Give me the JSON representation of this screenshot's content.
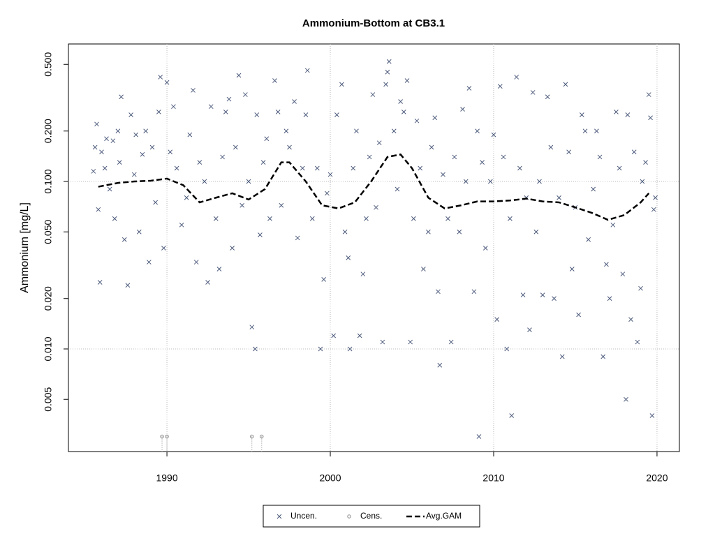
{
  "chart_data": {
    "type": "scatter",
    "title": "Ammonium-Bottom at CB3.1",
    "y_label": "Ammonium [mg/L]",
    "log_y": true,
    "grid": true,
    "legend": "bottom",
    "xlim": [
      1983.97,
      2021.37
    ],
    "ylim": [
      0.00244,
      0.662
    ],
    "xticks": [
      1990,
      2000,
      2010,
      2020
    ],
    "yticks": [
      {
        "value": 0.005,
        "label": "0.005"
      },
      {
        "value": 0.01,
        "label": "0.010"
      },
      {
        "value": 0.02,
        "label": "0.020"
      },
      {
        "value": 0.05,
        "label": "0.050"
      },
      {
        "value": 0.1,
        "label": "0.100"
      },
      {
        "value": 0.2,
        "label": "0.200"
      },
      {
        "value": 0.5,
        "label": "0.500"
      }
    ],
    "series": [
      {
        "name": "Uncen.",
        "type": "scatter",
        "marker": "x",
        "color": "#4d5b7c",
        "x": [
          1985.5,
          1985.6,
          1985.7,
          1985.8,
          1985.9,
          1986.0,
          1986.2,
          1986.3,
          1986.5,
          1986.7,
          1986.8,
          1987.0,
          1987.1,
          1987.2,
          1987.4,
          1987.6,
          1987.8,
          1988.0,
          1988.1,
          1988.3,
          1988.5,
          1988.7,
          1988.9,
          1989.1,
          1989.3,
          1989.5,
          1989.6,
          1989.8,
          1990.0,
          1990.2,
          1990.4,
          1990.6,
          1990.9,
          1991.2,
          1991.4,
          1991.6,
          1991.8,
          1992.0,
          1992.3,
          1992.5,
          1992.7,
          1993.0,
          1993.2,
          1993.4,
          1993.6,
          1993.8,
          1994.0,
          1994.2,
          1994.4,
          1994.6,
          1994.8,
          1995.0,
          1995.2,
          1995.4,
          1995.5,
          1995.7,
          1995.9,
          1996.1,
          1996.3,
          1996.6,
          1996.8,
          1997.0,
          1997.3,
          1997.5,
          1997.8,
          1998.0,
          1998.3,
          1998.5,
          1998.6,
          1998.9,
          1999.2,
          1999.4,
          1999.6,
          1999.8,
          2000.0,
          2000.2,
          2000.4,
          2000.7,
          2000.9,
          2001.1,
          2001.2,
          2001.4,
          2001.6,
          2001.8,
          2002.0,
          2002.2,
          2002.4,
          2002.6,
          2002.8,
          2003.0,
          2003.2,
          2003.4,
          2003.5,
          2003.6,
          2003.9,
          2004.1,
          2004.3,
          2004.5,
          2004.7,
          2004.9,
          2005.1,
          2005.3,
          2005.5,
          2005.7,
          2006.0,
          2006.2,
          2006.4,
          2006.6,
          2006.7,
          2006.9,
          2007.2,
          2007.4,
          2007.6,
          2007.9,
          2008.1,
          2008.3,
          2008.5,
          2008.8,
          2009.0,
          2009.1,
          2009.3,
          2009.5,
          2009.8,
          2010.0,
          2010.2,
          2010.4,
          2010.6,
          2010.8,
          2011.0,
          2011.1,
          2011.4,
          2011.6,
          2011.8,
          2012.0,
          2012.2,
          2012.4,
          2012.6,
          2012.8,
          2013.0,
          2013.3,
          2013.5,
          2013.7,
          2014.0,
          2014.2,
          2014.4,
          2014.6,
          2014.8,
          2015.0,
          2015.2,
          2015.4,
          2015.6,
          2015.8,
          2016.1,
          2016.3,
          2016.5,
          2016.7,
          2016.9,
          2017.1,
          2017.3,
          2017.5,
          2017.7,
          2017.9,
          2018.1,
          2018.2,
          2018.4,
          2018.6,
          2018.8,
          2019.0,
          2019.1,
          2019.3,
          2019.5,
          2019.6,
          2019.7,
          2019.8,
          2019.9
        ],
        "values": [
          0.115,
          0.16,
          0.22,
          0.068,
          0.025,
          0.15,
          0.12,
          0.18,
          0.09,
          0.175,
          0.06,
          0.2,
          0.13,
          0.32,
          0.045,
          0.024,
          0.25,
          0.11,
          0.19,
          0.05,
          0.145,
          0.2,
          0.033,
          0.16,
          0.075,
          0.26,
          0.42,
          0.04,
          0.39,
          0.15,
          0.28,
          0.12,
          0.055,
          0.08,
          0.19,
          0.35,
          0.033,
          0.13,
          0.1,
          0.025,
          0.28,
          0.06,
          0.03,
          0.14,
          0.26,
          0.31,
          0.04,
          0.16,
          0.43,
          0.072,
          0.33,
          0.1,
          0.0135,
          0.01,
          0.25,
          0.048,
          0.13,
          0.18,
          0.06,
          0.4,
          0.26,
          0.072,
          0.2,
          0.16,
          0.3,
          0.046,
          0.12,
          0.25,
          0.46,
          0.06,
          0.12,
          0.01,
          0.026,
          0.085,
          0.11,
          0.012,
          0.25,
          0.38,
          0.05,
          0.035,
          0.01,
          0.12,
          0.2,
          0.012,
          0.028,
          0.06,
          0.14,
          0.33,
          0.07,
          0.17,
          0.011,
          0.38,
          0.45,
          0.52,
          0.2,
          0.09,
          0.3,
          0.26,
          0.4,
          0.011,
          0.06,
          0.23,
          0.12,
          0.03,
          0.05,
          0.16,
          0.24,
          0.022,
          0.008,
          0.11,
          0.06,
          0.011,
          0.14,
          0.05,
          0.27,
          0.1,
          0.36,
          0.022,
          0.2,
          0.003,
          0.13,
          0.04,
          0.1,
          0.19,
          0.015,
          0.37,
          0.14,
          0.01,
          0.06,
          0.004,
          0.42,
          0.12,
          0.021,
          0.08,
          0.013,
          0.34,
          0.05,
          0.1,
          0.021,
          0.32,
          0.16,
          0.02,
          0.08,
          0.009,
          0.38,
          0.15,
          0.03,
          0.07,
          0.016,
          0.25,
          0.2,
          0.045,
          0.09,
          0.2,
          0.14,
          0.009,
          0.032,
          0.02,
          0.055,
          0.26,
          0.12,
          0.028,
          0.005,
          0.25,
          0.015,
          0.15,
          0.011,
          0.023,
          0.1,
          0.13,
          0.33,
          0.24,
          0.004,
          0.068,
          0.08
        ]
      },
      {
        "name": "Cens.",
        "type": "scatter",
        "marker": "o",
        "color": "#888888",
        "x": [
          1989.7,
          1990.0,
          1995.2,
          1995.8
        ],
        "values": [
          0.003,
          0.003,
          0.003,
          0.003
        ]
      },
      {
        "name": "Avg.GAM",
        "type": "line",
        "color": "#000000",
        "x": [
          1985.8,
          1987,
          1988,
          1989,
          1990,
          1991,
          1992,
          1993,
          1994,
          1995,
          1996,
          1997,
          1997.5,
          1998.5,
          1999.5,
          2000.5,
          2001.5,
          2002.5,
          2003.5,
          2004.3,
          2005,
          2006,
          2007,
          2008,
          2009,
          2010,
          2011,
          2012,
          2013,
          2014,
          2015,
          2016,
          2017,
          2018,
          2019,
          2019.5
        ],
        "values": [
          0.093,
          0.098,
          0.1,
          0.101,
          0.104,
          0.095,
          0.075,
          0.08,
          0.085,
          0.078,
          0.09,
          0.13,
          0.13,
          0.1,
          0.072,
          0.069,
          0.075,
          0.1,
          0.14,
          0.145,
          0.12,
          0.08,
          0.069,
          0.072,
          0.076,
          0.076,
          0.077,
          0.079,
          0.076,
          0.075,
          0.07,
          0.065,
          0.059,
          0.063,
          0.075,
          0.085
        ]
      }
    ]
  }
}
